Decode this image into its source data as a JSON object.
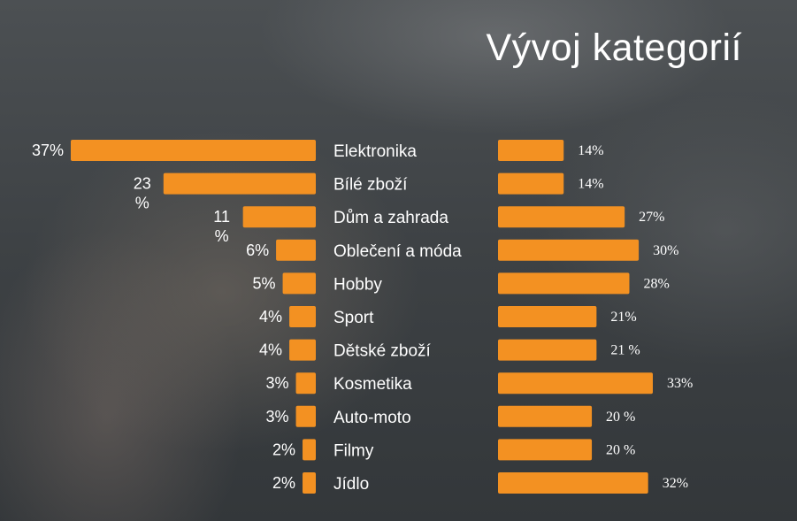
{
  "title": "Vývoj kategorií",
  "colors": {
    "bar": "#f39122",
    "text": "#ffffff",
    "background": "#3d4144"
  },
  "chart_data": {
    "type": "bar",
    "title": "Vývoj kategorií",
    "categories": [
      "Elektronika",
      "Bílé zboží",
      "Dům a zahrada",
      "Oblečení a móda",
      "Hobby",
      "Sport",
      "Dětské zboží",
      "Kosmetika",
      "Auto-moto",
      "Filmy",
      "Jídlo"
    ],
    "series": [
      {
        "values": [
          37,
          23,
          11,
          6,
          5,
          4,
          4,
          3,
          3,
          2,
          2
        ],
        "labels": [
          "37%",
          "23 %",
          "11 %",
          "6%",
          "5%",
          "4%",
          "4%",
          "3%",
          "3%",
          "2%",
          "2%"
        ]
      },
      {
        "values": [
          14,
          14,
          27,
          30,
          28,
          21,
          21,
          33,
          20,
          20,
          32
        ],
        "labels": [
          "14%",
          "14%",
          "27%",
          "30%",
          "28%",
          "21%",
          "21 %",
          "33%",
          "20 %",
          "20 %",
          "32%"
        ]
      }
    ],
    "xlabel": "",
    "ylabel": "",
    "grid": false,
    "legend": "none"
  }
}
